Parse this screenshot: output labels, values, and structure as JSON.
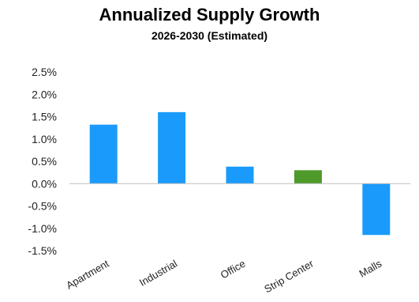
{
  "chart_data": {
    "type": "bar",
    "title": "Annualized Supply Growth",
    "subtitle": "2026-2030 (Estimated)",
    "categories": [
      "Apartment",
      "Industrial",
      "Office",
      "Strip Center",
      "Malls"
    ],
    "values": [
      1.32,
      1.6,
      0.38,
      0.3,
      -1.15
    ],
    "bar_colors": [
      "#1a9bfc",
      "#1a9bfc",
      "#1a9bfc",
      "#4e9a2a",
      "#1a9bfc"
    ],
    "ylim": [
      -1.5,
      2.5
    ],
    "yticks": [
      2.5,
      2.0,
      1.5,
      1.0,
      0.5,
      0.0,
      -0.5,
      -1.0,
      -1.5
    ],
    "ytick_labels": [
      "2.5%",
      "2.0%",
      "1.5%",
      "1.0%",
      "0.5%",
      "0.0%",
      "-0.5%",
      "-1.0%",
      "-1.5%"
    ],
    "grid": false,
    "legend": "none"
  }
}
